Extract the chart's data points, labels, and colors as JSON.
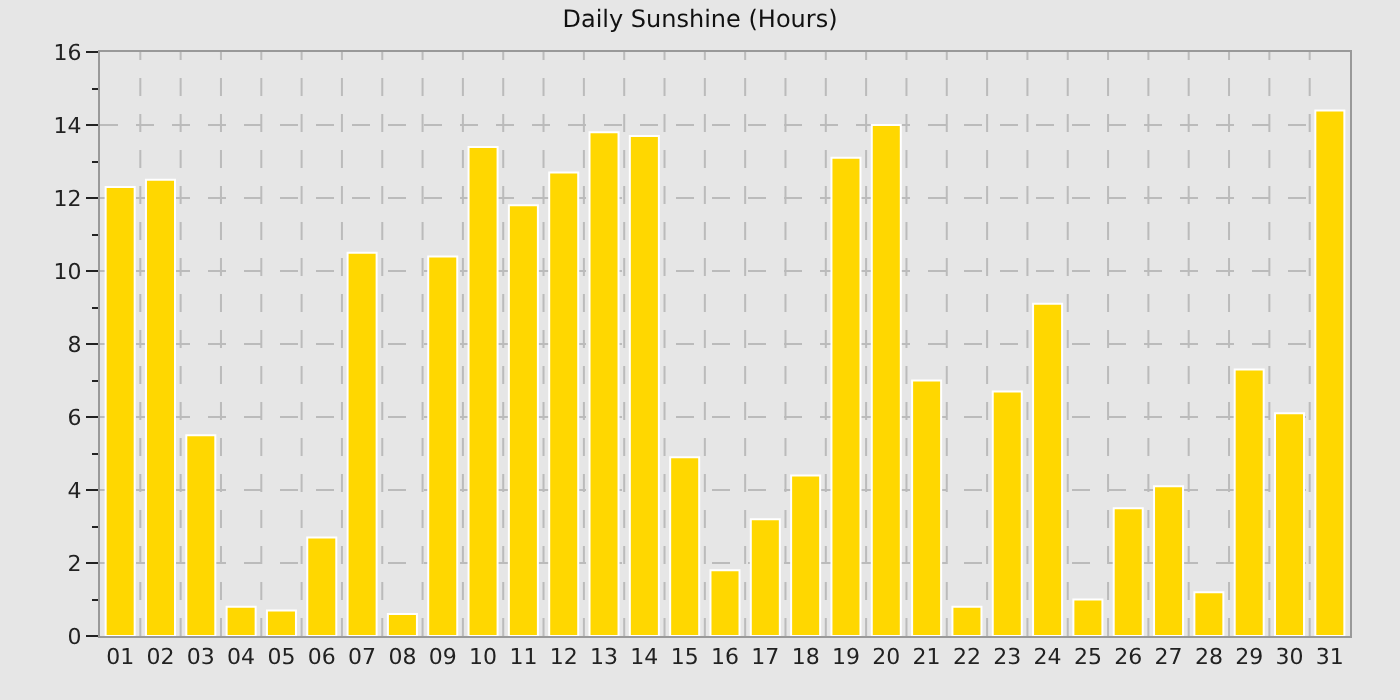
{
  "chart_data": {
    "type": "bar",
    "title": "Daily Sunshine (Hours)",
    "categories": [
      "01",
      "02",
      "03",
      "04",
      "05",
      "06",
      "07",
      "08",
      "09",
      "10",
      "11",
      "12",
      "13",
      "14",
      "15",
      "16",
      "17",
      "18",
      "19",
      "20",
      "21",
      "22",
      "23",
      "24",
      "25",
      "26",
      "27",
      "28",
      "29",
      "30",
      "31"
    ],
    "values": [
      12.3,
      12.5,
      5.5,
      0.8,
      0.7,
      2.7,
      10.5,
      0.6,
      10.4,
      13.4,
      11.8,
      12.7,
      13.8,
      13.7,
      4.9,
      1.8,
      3.2,
      4.4,
      13.1,
      14.0,
      7.0,
      0.8,
      6.7,
      9.1,
      1.0,
      3.5,
      4.1,
      1.2,
      7.3,
      6.1,
      14.4
    ],
    "color": "#ffd700",
    "ylim": [
      0,
      16
    ],
    "yticks": [
      0,
      2,
      4,
      6,
      8,
      10,
      12,
      14,
      16
    ],
    "grid": true,
    "legend": false
  }
}
